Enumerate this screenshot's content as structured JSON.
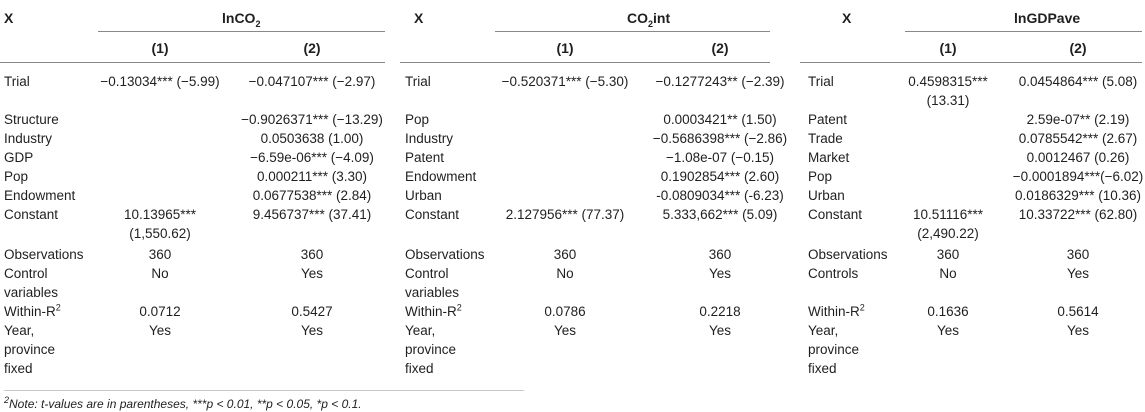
{
  "panels": [
    {
      "x_label": "X",
      "dep": "lnCO",
      "dep_sub": "2",
      "dep_suffix": "",
      "cols": [
        "(1)",
        "(2)"
      ],
      "rows": [
        {
          "label": "Trial",
          "c1": "−0.13034*** (−5.99)",
          "c2": "−0.047107*** (−2.97)"
        },
        {
          "label": "Structure",
          "c1": "",
          "c2": "−0.9026371*** (−13.29)"
        },
        {
          "label": "Industry",
          "c1": "",
          "c2": "0.0503638 (1.00)"
        },
        {
          "label": "GDP",
          "c1": "",
          "c2": "−6.59e-06*** (−4.09)"
        },
        {
          "label": "Pop",
          "c1": "",
          "c2": "0.000211*** (3.30)"
        },
        {
          "label": "Endowment",
          "c1": "",
          "c2": "0.0677538*** (2.84)"
        },
        {
          "label": "Constant",
          "c1": "10.13965***",
          "c1b": "(1,550.62)",
          "c2": "9.456737*** (37.41)"
        },
        {
          "label": "Observations",
          "c1": "360",
          "c2": "360"
        },
        {
          "label": "Control",
          "label2": "variables",
          "c1": "No",
          "c2": "Yes"
        },
        {
          "label": "Within-R",
          "c1": "0.0712",
          "c2": "0.5427"
        },
        {
          "label": "Year,",
          "label2": "province",
          "label3": "fixed",
          "c1": "Yes",
          "c2": "Yes"
        }
      ]
    },
    {
      "x_label": "X",
      "dep": "CO",
      "dep_sub": "2",
      "dep_suffix": "int",
      "cols": [
        "(1)",
        "(2)"
      ],
      "rows": [
        {
          "label": "Trial",
          "c1": "−0.520371*** (−5.30)",
          "c2": "−0.1277243** (−2.39)"
        },
        {
          "label": "Pop",
          "c1": "",
          "c2": "0.0003421** (1.50)"
        },
        {
          "label": "Industry",
          "c1": "",
          "c2": "−0.5686398*** (−2.86)"
        },
        {
          "label": "Patent",
          "c1": "",
          "c2": "−1.08e-07 (−0.15)"
        },
        {
          "label": "Endowment",
          "c1": "",
          "c2": "0.1902854*** (2.60)"
        },
        {
          "label": "Urban",
          "c1": "",
          "c2": "-0.0809034*** (-6.23)"
        },
        {
          "label": "Constant",
          "c1": "2.127956*** (77.37)",
          "c2": "5.333,662*** (5.09)"
        },
        {
          "label": "Observations",
          "c1": "360",
          "c2": "360"
        },
        {
          "label": "Control",
          "label2": "variables",
          "c1": "No",
          "c2": "Yes"
        },
        {
          "label": "Within-R",
          "c1": "0.0786",
          "c2": "0.2218"
        },
        {
          "label": "Year,",
          "label2": "province",
          "label3": "fixed",
          "c1": "Yes",
          "c2": "Yes"
        }
      ]
    },
    {
      "x_label": "X",
      "dep": "lnGDPave",
      "dep_sub": "",
      "dep_suffix": "",
      "cols": [
        "(1)",
        "(2)"
      ],
      "rows": [
        {
          "label": "Trial",
          "c1": "0.4598315***",
          "c1b": "(13.31)",
          "c2": "0.0454864*** (5.08)"
        },
        {
          "label": "Patent",
          "c1": "",
          "c2": "2.59e-07** (2.19)"
        },
        {
          "label": "Trade",
          "c1": "",
          "c2": "0.0785542*** (2.67)"
        },
        {
          "label": "Market",
          "c1": "",
          "c2": "0.0012467 (0.26)"
        },
        {
          "label": "Pop",
          "c1": "",
          "c2": "−0.0001894***(−6.02)"
        },
        {
          "label": "Urban",
          "c1": "",
          "c2": "0.0186329*** (10.36)"
        },
        {
          "label": "Constant",
          "c1": "10.51116***",
          "c1b": "(2,490.22)",
          "c2": "10.33722*** (62.80)"
        },
        {
          "label": "Observations",
          "c1": "360",
          "c2": "360"
        },
        {
          "label": "Controls",
          "c1": "No",
          "c2": "Yes"
        },
        {
          "label": "Within-R",
          "c1": "0.1636",
          "c2": "0.5614"
        },
        {
          "label": "Year,",
          "label2": "province",
          "label3": "fixed",
          "c1": "Yes",
          "c2": "Yes"
        }
      ]
    }
  ],
  "within_sup": "2",
  "footnote_sup": "2",
  "footnote": "Note: t-values are in parentheses, ***p < 0.01, **p < 0.05, *p < 0.1."
}
